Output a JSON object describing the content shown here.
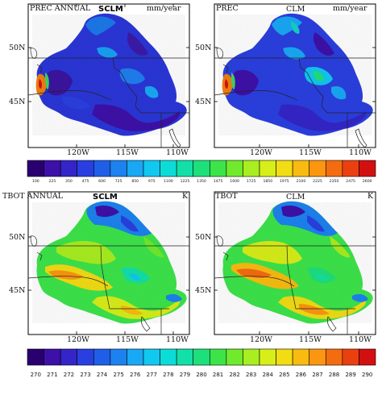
{
  "chart_data": [
    {
      "type": "heatmap",
      "title": "PREC ANNUAL",
      "model_label": "SCLM",
      "units": "mm/year",
      "x_ticks": [
        "120W",
        "115W",
        "110W"
      ],
      "y_ticks": [
        "50N",
        "45N"
      ]
    },
    {
      "type": "heatmap",
      "title": "PREC",
      "model_label": "CLM",
      "units": "mm/year",
      "x_ticks": [
        "120W",
        "115W",
        "110W"
      ],
      "y_ticks": [
        "50N",
        "45N"
      ]
    },
    {
      "type": "heatmap",
      "title": "TBOT ANNUAL",
      "model_label": "SCLM",
      "units": "K",
      "x_ticks": [
        "120W",
        "115W",
        "110W"
      ],
      "y_ticks": [
        "50N",
        "45N"
      ]
    },
    {
      "type": "heatmap",
      "title": "TBOT",
      "model_label": "CLM",
      "units": "K",
      "x_ticks": [
        "120W",
        "115W",
        "110W"
      ],
      "y_ticks": [
        "50N",
        "45N"
      ]
    }
  ],
  "colorbars": {
    "prec": {
      "labels": [
        "100",
        "225",
        "350",
        "475",
        "600",
        "725",
        "850",
        "975",
        "1100",
        "1225",
        "1350",
        "1475",
        "1600",
        "1725",
        "1850",
        "1975",
        "2100",
        "2225",
        "2350",
        "2475",
        "2600"
      ],
      "colors": [
        "#2a0070",
        "#3d10a8",
        "#3425c8",
        "#2a3fe0",
        "#1f5fe8",
        "#1c82f0",
        "#18a8f4",
        "#10c8f0",
        "#0cdcd8",
        "#12e0a8",
        "#1ee07a",
        "#3ce44a",
        "#70ea2c",
        "#a8ee20",
        "#d8ee18",
        "#f2dc14",
        "#f8bc10",
        "#fa9610",
        "#f46c10",
        "#ea4010",
        "#d21010"
      ]
    },
    "tbot": {
      "labels": [
        "270",
        "271",
        "272",
        "273",
        "274",
        "275",
        "276",
        "277",
        "278",
        "279",
        "280",
        "281",
        "282",
        "283",
        "284",
        "285",
        "286",
        "287",
        "288",
        "289",
        "290"
      ],
      "colors": [
        "#2a0070",
        "#3d10a8",
        "#3425c8",
        "#2a3fe0",
        "#1f5fe8",
        "#1c82f0",
        "#18a8f4",
        "#10c8f0",
        "#0cdcd8",
        "#12e0a8",
        "#1ee07a",
        "#3ce44a",
        "#70ea2c",
        "#a8ee20",
        "#d8ee18",
        "#f2dc14",
        "#f8bc10",
        "#fa9610",
        "#f46c10",
        "#ea4010",
        "#d21010"
      ]
    }
  },
  "colors": {
    "background": "#ffffff",
    "frame": "#000000",
    "border_lines": "#222222"
  }
}
